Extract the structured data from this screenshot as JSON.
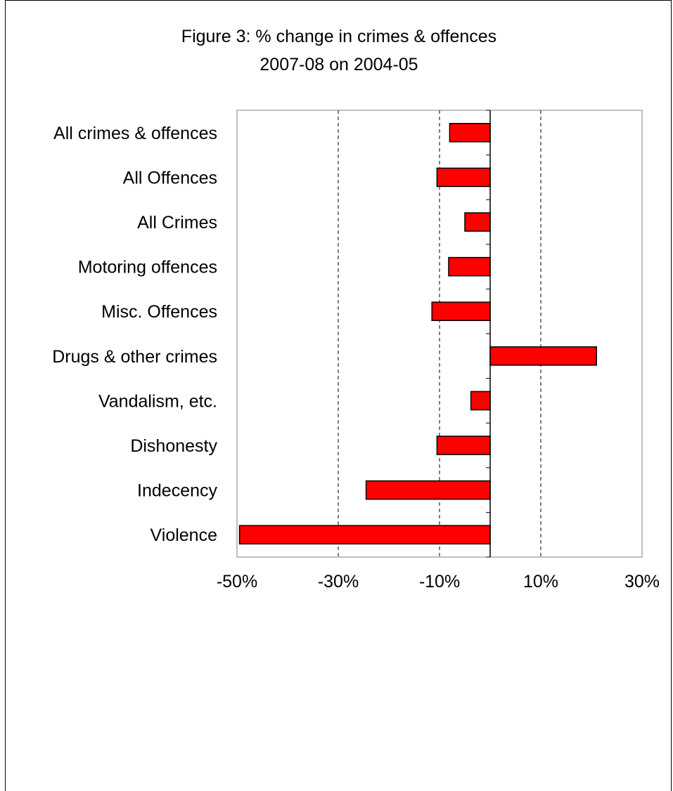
{
  "chart_data": {
    "type": "bar",
    "orientation": "horizontal",
    "title": "Figure 3: % change in crimes & offences",
    "subtitle": "2007-08 on 2004-05",
    "categories": [
      "All crimes & offences",
      "All Offences",
      "All Crimes",
      "Motoring offences",
      "Misc. Offences",
      "Drugs & other crimes",
      "Vandalism, etc.",
      "Dishonesty",
      "Indecency",
      "Violence"
    ],
    "values": [
      -8,
      -10.5,
      -5,
      -8.2,
      -11.5,
      21,
      -3.8,
      -10.5,
      -24.5,
      -49.5
    ],
    "xlim": [
      -50,
      30
    ],
    "x_ticks": [
      -50,
      -30,
      -10,
      10,
      30
    ],
    "x_tick_labels": [
      "-50%",
      "-30%",
      "-10%",
      "10%",
      "30%"
    ],
    "xlabel": "",
    "ylabel": "",
    "grid": "vertical-dashed",
    "legend": "none",
    "bar_color": "#ff0000",
    "bar_edge_color": "#000000"
  }
}
